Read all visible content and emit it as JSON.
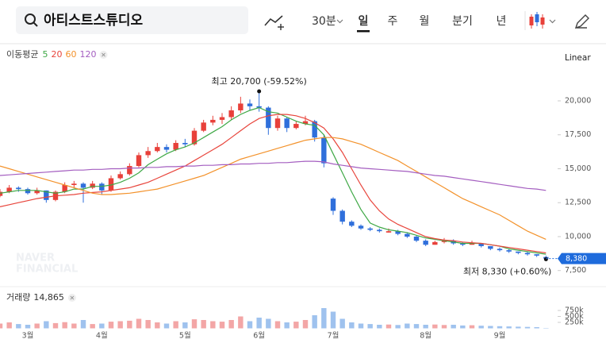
{
  "toolbar": {
    "search": "아티스트스튜디오",
    "intervals": [
      "30분",
      "일",
      "주",
      "월",
      "분기",
      "년"
    ],
    "selected": 1
  },
  "chart_data": {
    "type": "candlestick",
    "ma_title": "이동평균",
    "scale_label": "Linear",
    "watermark": [
      "NAVER",
      "FINANCIAL"
    ],
    "categories": [
      null,
      null,
      null,
      "3월",
      null,
      null,
      null,
      null,
      null,
      null,
      null,
      "4월",
      null,
      null,
      null,
      null,
      null,
      null,
      null,
      null,
      "5월",
      null,
      null,
      null,
      null,
      null,
      null,
      null,
      "6월",
      null,
      null,
      null,
      null,
      null,
      null,
      null,
      "7월",
      null,
      null,
      null,
      null,
      null,
      null,
      null,
      null,
      null,
      "8월",
      null,
      null,
      null,
      null,
      null,
      null,
      null,
      "9월",
      null,
      null,
      null,
      null,
      null
    ],
    "open": [
      13000,
      13300,
      13600,
      13500,
      13200,
      13400,
      12700,
      13300,
      13800,
      13900,
      13600,
      13900,
      13400,
      14300,
      14600,
      15200,
      16000,
      16300,
      16600,
      16400,
      16900,
      16800,
      17800,
      18400,
      18600,
      18800,
      19300,
      19800,
      19600,
      19500,
      18000,
      18700,
      18000,
      18300,
      18500,
      17300,
      12800,
      11900,
      11100,
      10800,
      10600,
      10500,
      10300,
      10400,
      10200,
      10000,
      9700,
      9400,
      9600,
      9700,
      9500,
      9400,
      9500,
      9300,
      9100,
      9000,
      8900,
      8800,
      8700,
      8500
    ],
    "high": [
      13500,
      13800,
      13700,
      13600,
      13600,
      13400,
      13400,
      14000,
      14100,
      14000,
      14100,
      14000,
      14500,
      14800,
      15400,
      16200,
      16600,
      16900,
      16800,
      17100,
      17200,
      18000,
      18600,
      18900,
      19100,
      19600,
      20300,
      20100,
      20700,
      19600,
      18900,
      18800,
      18500,
      18900,
      18600,
      17500,
      12900,
      12000,
      11200,
      10900,
      10700,
      10600,
      10600,
      10500,
      10300,
      10100,
      9800,
      9700,
      9900,
      9800,
      9600,
      9700,
      9500,
      9300,
      9200,
      9100,
      8900,
      8900,
      8700,
      8600
    ],
    "low": [
      12900,
      13200,
      13300,
      13100,
      13100,
      12500,
      12600,
      13200,
      13600,
      12500,
      13500,
      13100,
      13300,
      14200,
      14500,
      15100,
      15800,
      16200,
      16200,
      16300,
      16600,
      16700,
      17700,
      18200,
      18300,
      18600,
      19100,
      19300,
      19200,
      17500,
      17800,
      17700,
      17900,
      18200,
      17000,
      15100,
      11600,
      10900,
      10700,
      10500,
      10400,
      10300,
      10300,
      10100,
      9900,
      9600,
      9300,
      9400,
      9500,
      9400,
      9300,
      9400,
      9200,
      9000,
      8900,
      8800,
      8700,
      8600,
      8500,
      8330
    ],
    "close": [
      13300,
      13600,
      13500,
      13200,
      13400,
      12700,
      13300,
      13800,
      13900,
      13600,
      13900,
      13400,
      14300,
      14600,
      15200,
      16000,
      16300,
      16600,
      16400,
      16900,
      16800,
      17800,
      18400,
      18600,
      18800,
      19300,
      19800,
      19600,
      19500,
      18000,
      18700,
      18000,
      18300,
      18500,
      17300,
      15400,
      11900,
      11100,
      10800,
      10600,
      10500,
      10400,
      10400,
      10200,
      10000,
      9700,
      9400,
      9600,
      9700,
      9500,
      9400,
      9500,
      9300,
      9100,
      9000,
      8900,
      8800,
      8700,
      8600,
      8380
    ],
    "up_color": "#e8403a",
    "down_color": "#2f6fdb",
    "series": [
      {
        "name": "5",
        "color": "#3ea845",
        "values": [
          13200,
          13300,
          13400,
          13400,
          13400,
          13300,
          13200,
          13300,
          13500,
          13500,
          13700,
          13700,
          13800,
          14000,
          14300,
          14700,
          15300,
          15700,
          16100,
          16400,
          16600,
          16900,
          17300,
          17700,
          18100,
          18600,
          19000,
          19300,
          19500,
          19200,
          19100,
          18800,
          18500,
          18300,
          18200,
          17500,
          16100,
          14700,
          13300,
          12000,
          11000,
          10700,
          10500,
          10400,
          10300,
          10100,
          9900,
          9800,
          9700,
          9600,
          9500,
          9500,
          9500,
          9400,
          9300,
          9100,
          9000,
          8900,
          8800,
          8700
        ]
      },
      {
        "name": "20",
        "color": "#e8453c",
        "values": [
          12200,
          12350,
          12500,
          12650,
          12800,
          12900,
          13000,
          13050,
          13100,
          13200,
          13250,
          13300,
          13400,
          13500,
          13600,
          13800,
          14000,
          14300,
          14600,
          14900,
          15200,
          15600,
          16000,
          16400,
          16800,
          17300,
          17800,
          18300,
          18700,
          18900,
          19000,
          19000,
          18900,
          18700,
          18400,
          18000,
          17200,
          16200,
          15000,
          13800,
          12700,
          11900,
          11300,
          10900,
          10600,
          10300,
          10000,
          9850,
          9750,
          9700,
          9600,
          9550,
          9500,
          9400,
          9300,
          9200,
          9100,
          9000,
          8900,
          8800
        ]
      },
      {
        "name": "60",
        "color": "#f3922b",
        "values": [
          15200,
          15000,
          14800,
          14600,
          14400,
          14200,
          14000,
          13800,
          13600,
          13400,
          13200,
          13100,
          13100,
          13150,
          13200,
          13300,
          13400,
          13500,
          13700,
          13900,
          14100,
          14300,
          14500,
          14800,
          15100,
          15400,
          15700,
          15900,
          16100,
          16300,
          16500,
          16700,
          16900,
          17100,
          17200,
          17300,
          17300,
          17200,
          17000,
          16800,
          16500,
          16200,
          15900,
          15600,
          15200,
          14800,
          14400,
          14000,
          13600,
          13200,
          12800,
          12500,
          12200,
          11900,
          11600,
          11200,
          10800,
          10400,
          10100,
          9800
        ]
      },
      {
        "name": "120",
        "color": "#a45ec0",
        "values": [
          14500,
          14550,
          14600,
          14650,
          14700,
          14750,
          14800,
          14850,
          14900,
          14900,
          14950,
          14950,
          15000,
          15000,
          15050,
          15050,
          15100,
          15100,
          15150,
          15150,
          15200,
          15200,
          15250,
          15250,
          15300,
          15300,
          15350,
          15350,
          15400,
          15400,
          15450,
          15450,
          15500,
          15550,
          15550,
          15500,
          15350,
          15250,
          15150,
          15050,
          15000,
          14950,
          14900,
          14850,
          14800,
          14700,
          14600,
          14500,
          14450,
          14350,
          14250,
          14150,
          14050,
          13950,
          13850,
          13750,
          13650,
          13550,
          13500,
          13400
        ]
      }
    ],
    "ylim": [
      6800,
      22000
    ],
    "yticks": [
      {
        "value": 7500,
        "label": "7,500"
      },
      {
        "value": 10000,
        "label": "10,000"
      },
      {
        "value": 12500,
        "label": "12,500"
      },
      {
        "value": 15000,
        "label": "15,000"
      },
      {
        "value": 17500,
        "label": "17,500"
      },
      {
        "value": 20000,
        "label": "20,000"
      }
    ],
    "last_price": {
      "value": 8380,
      "label": "8,380"
    },
    "annotations": [
      {
        "text": "최고 20,700 (-59.52%)",
        "index": 28,
        "value": 20700
      },
      {
        "text": "최저 8,330 (+0.60%)",
        "index": 59,
        "value": 8330
      }
    ],
    "volume_title": "거래량",
    "volume_last": {
      "value": 14865,
      "label": "14,865"
    },
    "volume": [
      200000,
      250000,
      180000,
      150000,
      200000,
      300000,
      220000,
      260000,
      200000,
      350000,
      180000,
      200000,
      280000,
      300000,
      320000,
      400000,
      350000,
      250000,
      200000,
      300000,
      250000,
      380000,
      350000,
      300000,
      280000,
      350000,
      500000,
      300000,
      450000,
      400000,
      300000,
      250000,
      280000,
      350000,
      550000,
      850000,
      700000,
      400000,
      250000,
      200000,
      180000,
      150000,
      160000,
      140000,
      200000,
      180000,
      150000,
      160000,
      140000,
      150000,
      120000,
      130000,
      110000,
      100000,
      90000,
      80000,
      70000,
      60000,
      50000,
      14865
    ],
    "volume_up_color": "#f3a6a6",
    "volume_down_color": "#9fc2ee",
    "volume_ylim": [
      0,
      950000
    ],
    "volume_ticks": [
      {
        "value": 250000,
        "label": "250k"
      },
      {
        "value": 500000,
        "label": "500k"
      },
      {
        "value": 750000,
        "label": "750k"
      }
    ]
  }
}
